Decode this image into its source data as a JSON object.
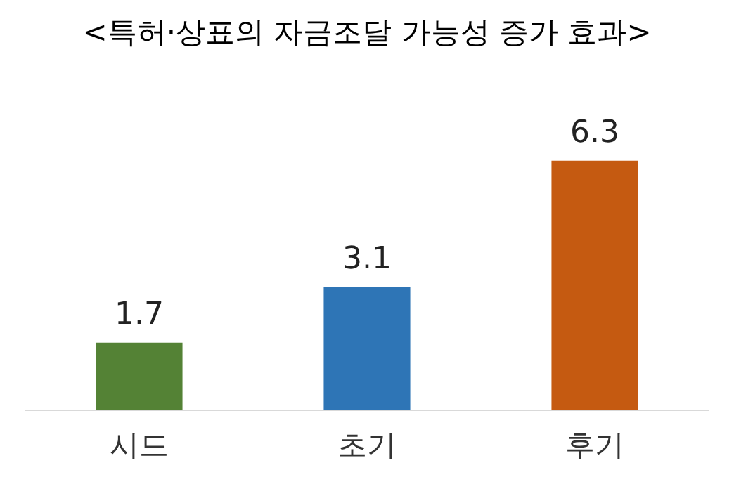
{
  "chart_data": {
    "type": "bar",
    "title": "<특허·상표의 자금조달 가능성 증가 효과>",
    "categories": [
      "시드",
      "초기",
      "후기"
    ],
    "values": [
      1.7,
      3.1,
      6.3
    ],
    "colors": [
      "#548235",
      "#2e75b6",
      "#c55a11"
    ],
    "data_labels": true,
    "grid": false,
    "legend": false
  }
}
